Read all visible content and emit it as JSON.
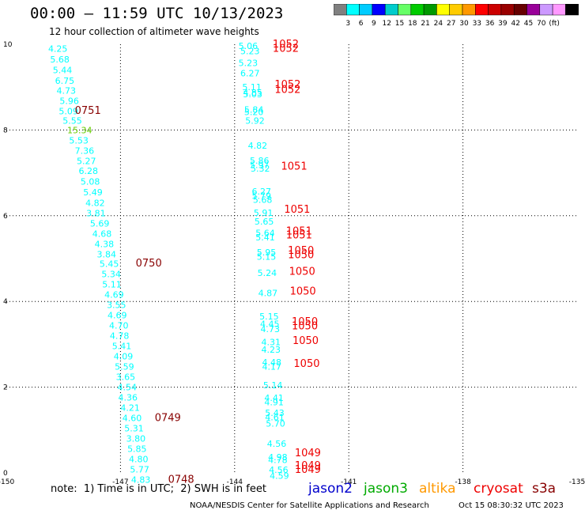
{
  "title": "00:00 – 11:59 UTC 10/13/2023",
  "subtitle": "12 hour collection of altimeter wave heights",
  "colorbar": {
    "colors": [
      "#808080",
      "#00ffff",
      "#00ccff",
      "#0000ff",
      "#00cccc",
      "#66ff66",
      "#00cc00",
      "#009900",
      "#ffff00",
      "#ffcc00",
      "#ff9900",
      "#ff0000",
      "#cc0000",
      "#990000",
      "#660000",
      "#990099",
      "#cc99ff",
      "#ff99ff",
      "#000000"
    ],
    "labels": [
      "3",
      "6",
      "9",
      "12",
      "15",
      "18",
      "21",
      "24",
      "27",
      "30",
      "33",
      "36",
      "39",
      "42",
      "45",
      "70",
      "(ft)"
    ]
  },
  "note": "note:  1) Time is in UTC;  2) SWH is in feet",
  "legend": [
    {
      "name": "jason2",
      "color": "#0000cc"
    },
    {
      "name": "jason3",
      "color": "#00aa00"
    },
    {
      "name": "altika",
      "color": "#ff9900"
    },
    {
      "name": "cryosat",
      "color": "#ee0000"
    },
    {
      "name": "s3a",
      "color": "#880000"
    }
  ],
  "credit": "NOAA/NESDIS Center for Satellite Applications and Research",
  "timestamp": "Oct 15 08:30:32 UTC 2023",
  "chart_data": {
    "type": "scatter",
    "title": "12 hour collection of altimeter wave heights",
    "xlim": [
      -150,
      -135
    ],
    "ylim": [
      0,
      10
    ],
    "x_ticks": [
      -150,
      -147,
      -144,
      -141,
      -138,
      -135
    ],
    "y_ticks": [
      0,
      2,
      4,
      6,
      8,
      10
    ],
    "grid": true,
    "series": [
      {
        "name": "altika",
        "color": "#00ffff",
        "points": [
          {
            "x": -148.9,
            "y": 9.9,
            "v": "4.25"
          },
          {
            "x": -148.85,
            "y": 9.65,
            "v": "5.68"
          },
          {
            "x": -148.78,
            "y": 9.4,
            "v": "5.44"
          },
          {
            "x": -148.72,
            "y": 9.15,
            "v": "6.75"
          },
          {
            "x": -148.68,
            "y": 8.92,
            "v": "4.73"
          },
          {
            "x": -148.6,
            "y": 8.68,
            "v": "5.96"
          },
          {
            "x": -148.62,
            "y": 8.44,
            "v": "5.09"
          },
          {
            "x": -148.52,
            "y": 8.22,
            "v": "5.55"
          },
          {
            "x": -148.4,
            "y": 8.0,
            "v": "15.34",
            "c": "#66cc00"
          },
          {
            "x": -148.35,
            "y": 7.76,
            "v": "5.53"
          },
          {
            "x": -148.2,
            "y": 7.52,
            "v": "7.36"
          },
          {
            "x": -148.15,
            "y": 7.28,
            "v": "5.27"
          },
          {
            "x": -148.1,
            "y": 7.05,
            "v": "6.28"
          },
          {
            "x": -148.05,
            "y": 6.8,
            "v": "5.08"
          },
          {
            "x": -147.98,
            "y": 6.55,
            "v": "5.49"
          },
          {
            "x": -147.92,
            "y": 6.3,
            "v": "4.82"
          },
          {
            "x": -147.9,
            "y": 6.06,
            "v": "3.81"
          },
          {
            "x": -147.8,
            "y": 5.82,
            "v": "5.69"
          },
          {
            "x": -147.74,
            "y": 5.58,
            "v": "4.68"
          },
          {
            "x": -147.68,
            "y": 5.34,
            "v": "4.38"
          },
          {
            "x": -147.62,
            "y": 5.1,
            "v": "3.84"
          },
          {
            "x": -147.55,
            "y": 4.88,
            "v": "5.45"
          },
          {
            "x": -147.5,
            "y": 4.64,
            "v": "5.34"
          },
          {
            "x": -147.48,
            "y": 4.4,
            "v": "5.11"
          },
          {
            "x": -147.42,
            "y": 4.16,
            "v": "4.69"
          },
          {
            "x": -147.36,
            "y": 3.92,
            "v": "3.55"
          },
          {
            "x": -147.34,
            "y": 3.68,
            "v": "4.69"
          },
          {
            "x": -147.3,
            "y": 3.44,
            "v": "4.70"
          },
          {
            "x": -147.28,
            "y": 3.2,
            "v": "4.78"
          },
          {
            "x": -147.22,
            "y": 2.96,
            "v": "5.41"
          },
          {
            "x": -147.18,
            "y": 2.72,
            "v": "4.09"
          },
          {
            "x": -147.15,
            "y": 2.48,
            "v": "5.59"
          },
          {
            "x": -147.12,
            "y": 2.24,
            "v": "3.65"
          },
          {
            "x": -147.08,
            "y": 2.0,
            "v": "4.54"
          },
          {
            "x": -147.06,
            "y": 1.76,
            "v": "4.36"
          },
          {
            "x": -147.0,
            "y": 1.52,
            "v": "4.21"
          },
          {
            "x": -146.95,
            "y": 1.28,
            "v": "4.60"
          },
          {
            "x": -146.9,
            "y": 1.04,
            "v": "5.31"
          },
          {
            "x": -146.85,
            "y": 0.8,
            "v": "3.80"
          },
          {
            "x": -146.82,
            "y": 0.56,
            "v": "5.85"
          },
          {
            "x": -146.78,
            "y": 0.32,
            "v": "4.80"
          },
          {
            "x": -146.75,
            "y": 0.08,
            "v": "5.77"
          },
          {
            "x": -146.72,
            "y": -0.16,
            "v": "4.83"
          },
          {
            "x": -143.9,
            "y": 9.96,
            "v": "5.06"
          },
          {
            "x": -143.85,
            "y": 9.84,
            "v": "5.23"
          },
          {
            "x": -143.9,
            "y": 9.57,
            "v": "5.23"
          },
          {
            "x": -143.85,
            "y": 9.33,
            "v": "6.27"
          },
          {
            "x": -143.8,
            "y": 9.0,
            "v": "5.11"
          },
          {
            "x": -143.78,
            "y": 8.87,
            "v": "4.85"
          },
          {
            "x": -143.78,
            "y": 8.84,
            "v": "5.03"
          },
          {
            "x": -143.75,
            "y": 8.48,
            "v": "5.84"
          },
          {
            "x": -143.75,
            "y": 8.42,
            "v": "5.20"
          },
          {
            "x": -143.72,
            "y": 8.22,
            "v": "5.92"
          },
          {
            "x": -143.65,
            "y": 7.64,
            "v": "4.82"
          },
          {
            "x": -143.6,
            "y": 7.29,
            "v": "5.86"
          },
          {
            "x": -143.6,
            "y": 7.19,
            "v": "5.97"
          },
          {
            "x": -143.58,
            "y": 7.1,
            "v": "5.32"
          },
          {
            "x": -143.55,
            "y": 6.57,
            "v": "6.27"
          },
          {
            "x": -143.55,
            "y": 6.47,
            "v": "5.79"
          },
          {
            "x": -143.52,
            "y": 6.37,
            "v": "5.68"
          },
          {
            "x": -143.5,
            "y": 6.07,
            "v": "5.91"
          },
          {
            "x": -143.48,
            "y": 5.87,
            "v": "5.65"
          },
          {
            "x": -143.45,
            "y": 5.6,
            "v": "5.64"
          },
          {
            "x": -143.45,
            "y": 5.5,
            "v": "5.41"
          },
          {
            "x": -143.42,
            "y": 5.15,
            "v": "5.95"
          },
          {
            "x": -143.42,
            "y": 5.05,
            "v": "5.15"
          },
          {
            "x": -143.4,
            "y": 4.67,
            "v": "5.24"
          },
          {
            "x": -143.38,
            "y": 4.2,
            "v": "4.87"
          },
          {
            "x": -143.35,
            "y": 3.65,
            "v": "5.15"
          },
          {
            "x": -143.33,
            "y": 3.48,
            "v": "4.45"
          },
          {
            "x": -143.32,
            "y": 3.36,
            "v": "4.73"
          },
          {
            "x": -143.3,
            "y": 3.05,
            "v": "4.31"
          },
          {
            "x": -143.3,
            "y": 2.88,
            "v": "4.23"
          },
          {
            "x": -143.28,
            "y": 2.58,
            "v": "4.48"
          },
          {
            "x": -143.28,
            "y": 2.48,
            "v": "4.17"
          },
          {
            "x": -143.25,
            "y": 2.05,
            "v": "5.14"
          },
          {
            "x": -143.22,
            "y": 1.75,
            "v": "4.41"
          },
          {
            "x": -143.22,
            "y": 1.65,
            "v": "4.91"
          },
          {
            "x": -143.2,
            "y": 1.4,
            "v": "5.43"
          },
          {
            "x": -143.2,
            "y": 1.3,
            "v": "4.61"
          },
          {
            "x": -143.18,
            "y": 1.15,
            "v": "5.70"
          },
          {
            "x": -143.15,
            "y": 0.68,
            "v": "4.56"
          },
          {
            "x": -143.12,
            "y": 0.37,
            "v": "4.98"
          },
          {
            "x": -143.12,
            "y": 0.3,
            "v": "4.78"
          },
          {
            "x": -143.1,
            "y": 0.07,
            "v": "4.56"
          },
          {
            "x": -143.08,
            "y": -0.06,
            "v": "4.59"
          }
        ]
      },
      {
        "name": "cryosat",
        "color": "#ee0000",
        "points": [
          {
            "x": -143.0,
            "y": 10.0,
            "v": "1052"
          },
          {
            "x": -143.0,
            "y": 9.9,
            "v": "1052"
          },
          {
            "x": -142.95,
            "y": 9.06,
            "v": "1052"
          },
          {
            "x": -142.95,
            "y": 8.94,
            "v": "1052"
          },
          {
            "x": -142.78,
            "y": 7.15,
            "v": "1051"
          },
          {
            "x": -142.7,
            "y": 6.14,
            "v": "1051"
          },
          {
            "x": -142.65,
            "y": 5.64,
            "v": "1051"
          },
          {
            "x": -142.65,
            "y": 5.54,
            "v": "1051"
          },
          {
            "x": -142.6,
            "y": 5.18,
            "v": "1050"
          },
          {
            "x": -142.6,
            "y": 5.08,
            "v": "1050"
          },
          {
            "x": -142.57,
            "y": 4.7,
            "v": "1050"
          },
          {
            "x": -142.55,
            "y": 4.23,
            "v": "1050"
          },
          {
            "x": -142.5,
            "y": 3.52,
            "v": "1050"
          },
          {
            "x": -142.5,
            "y": 3.42,
            "v": "1050"
          },
          {
            "x": -142.48,
            "y": 3.08,
            "v": "1050"
          },
          {
            "x": -142.45,
            "y": 2.55,
            "v": "1050"
          },
          {
            "x": -142.42,
            "y": 0.46,
            "v": "1049"
          },
          {
            "x": -142.42,
            "y": 0.17,
            "v": "1049"
          },
          {
            "x": -142.42,
            "y": 0.07,
            "v": "1049"
          }
        ]
      },
      {
        "name": "s3a",
        "color": "#880000",
        "points": [
          {
            "x": -148.2,
            "y": 8.45,
            "v": "0751"
          },
          {
            "x": -146.6,
            "y": 4.89,
            "v": "0750"
          },
          {
            "x": -146.1,
            "y": 1.28,
            "v": "0749"
          },
          {
            "x": -145.75,
            "y": -0.16,
            "v": "0748"
          }
        ]
      }
    ]
  }
}
